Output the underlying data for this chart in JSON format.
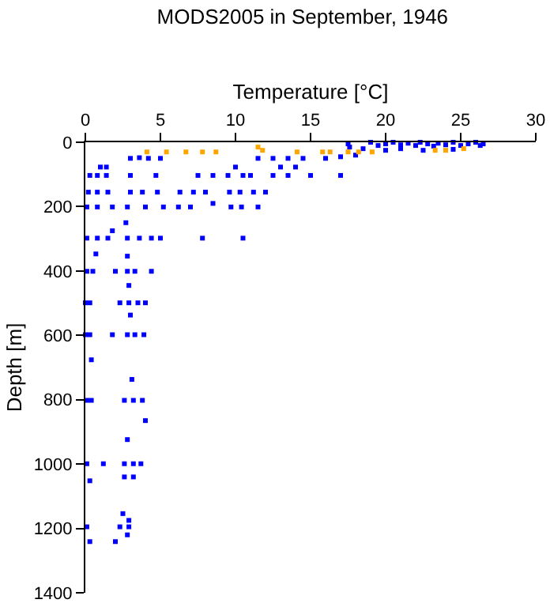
{
  "chart_data": {
    "type": "scatter",
    "title": "MODS2005 in September, 1946",
    "xlabel": "Temperature [°C]",
    "ylabel": "Depth [m]",
    "xlim": [
      0,
      30
    ],
    "xticks": [
      0,
      5,
      10,
      15,
      20,
      25,
      30
    ],
    "ylim": [
      1400,
      0
    ],
    "yticks": [
      0,
      200,
      400,
      600,
      800,
      1000,
      1200,
      1400
    ],
    "grid": false,
    "marker": "square",
    "series": [
      {
        "color": "#0000ff",
        "x": [
          17.5,
          17.6,
          19,
          19.5,
          20,
          20.5,
          21,
          21.5,
          22,
          22.3,
          22.8,
          23.2,
          23.5,
          24,
          24.5,
          25,
          25.5,
          26,
          26.3,
          26.5,
          21,
          22.5,
          20,
          24.5,
          18.5,
          3,
          3.6,
          4.2,
          5,
          11.5,
          12.5,
          13.5,
          14.5,
          16,
          17,
          18,
          1,
          1.4,
          10,
          13,
          14,
          0.3,
          0.8,
          1.4,
          3,
          4.7,
          7.5,
          8.5,
          9.5,
          10.5,
          11,
          12.5,
          13.5,
          15,
          17,
          0.2,
          0.8,
          1.5,
          3,
          3.8,
          4.8,
          6.3,
          7.2,
          8,
          9.6,
          10.3,
          11.2,
          12,
          0.1,
          0.8,
          1.8,
          2.8,
          4,
          5.2,
          6.2,
          7,
          8.5,
          9.7,
          10.4,
          11.5,
          2.7,
          1.8,
          0.1,
          0.8,
          1.5,
          2.8,
          3.6,
          4.4,
          5,
          7.8,
          10.5,
          0.7,
          2.8,
          0.1,
          0.5,
          2,
          2.8,
          3.3,
          4.4,
          2.9,
          0,
          0.3,
          2.3,
          2.9,
          3.5,
          4,
          3,
          0,
          0.3,
          1.8,
          2.8,
          3.3,
          3.9,
          0.4,
          3.1,
          0.1,
          0.4,
          2.6,
          3.2,
          3.8,
          4,
          2.8,
          0.1,
          1.2,
          2.6,
          3.2,
          3.7,
          2.6,
          3.2,
          0.3,
          2.5,
          2.9,
          0.1,
          2.3,
          2.9,
          2.8,
          0.3,
          2
        ],
        "values": [
          5,
          15,
          0,
          10,
          5,
          0,
          8,
          3,
          10,
          0,
          5,
          12,
          3,
          8,
          0,
          10,
          5,
          0,
          10,
          5,
          20,
          25,
          25,
          22,
          20,
          50,
          48,
          50,
          50,
          50,
          50,
          50,
          50,
          50,
          45,
          40,
          77,
          77,
          77,
          77,
          77,
          103,
          103,
          103,
          103,
          103,
          103,
          103,
          103,
          103,
          103,
          103,
          103,
          103,
          103,
          155,
          155,
          155,
          155,
          155,
          155,
          155,
          155,
          155,
          155,
          155,
          155,
          155,
          201,
          201,
          201,
          201,
          201,
          201,
          201,
          201,
          190,
          201,
          201,
          201,
          250,
          275,
          298,
          298,
          298,
          298,
          298,
          298,
          298,
          298,
          298,
          347,
          354,
          401,
          401,
          401,
          401,
          401,
          401,
          445,
          499,
          499,
          499,
          499,
          499,
          499,
          537,
          598,
          598,
          598,
          598,
          598,
          598,
          676,
          737,
          802,
          802,
          802,
          802,
          802,
          865,
          924,
          999,
          999,
          999,
          999,
          999,
          1040,
          1040,
          1052,
          1154,
          1175,
          1195,
          1195,
          1195,
          1220,
          1241,
          1241
        ]
      },
      {
        "color": "#ffa500",
        "x": [
          4.1,
          5.4,
          6.7,
          7.8,
          8.7,
          11.5,
          11.8,
          14.1,
          15.8,
          16.3,
          17.5,
          18.2,
          19.1,
          23.3,
          24,
          25.2
        ],
        "values": [
          30,
          30,
          30,
          30,
          30,
          15,
          25,
          30,
          30,
          30,
          30,
          30,
          30,
          25,
          25,
          20
        ]
      }
    ]
  }
}
